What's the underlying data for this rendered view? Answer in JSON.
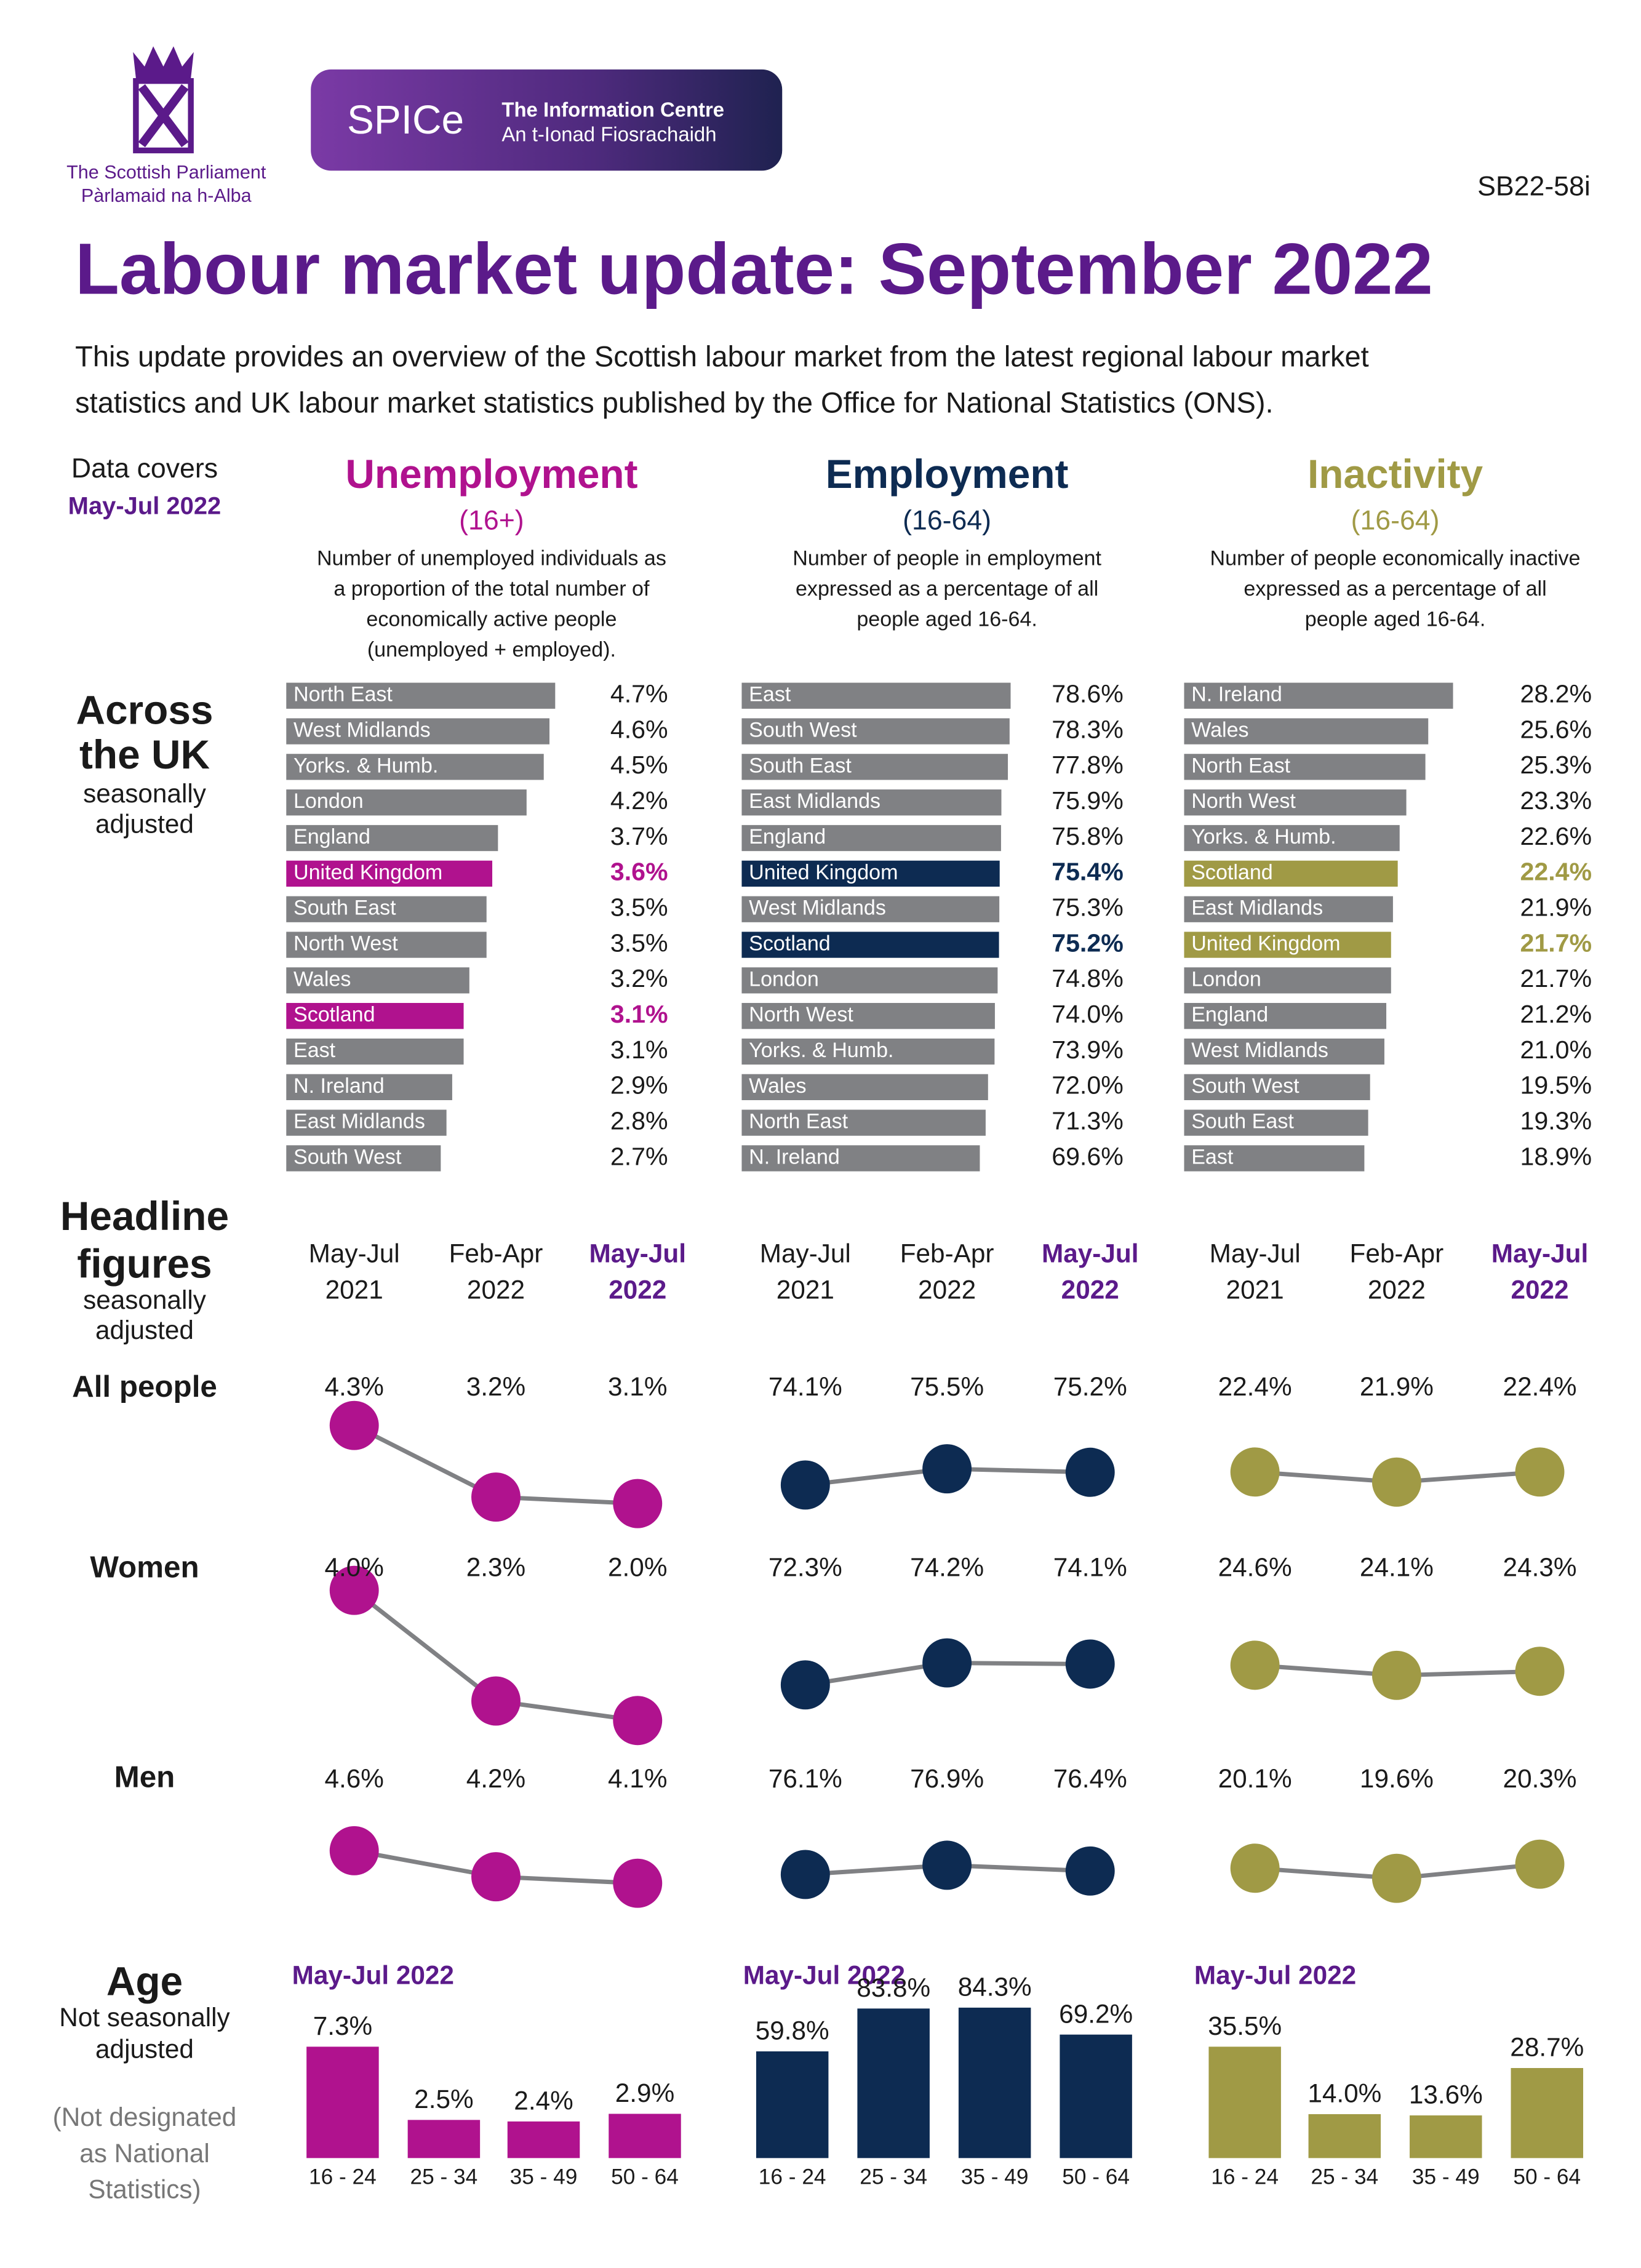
{
  "header": {
    "org": [
      "The Scottish Parliament",
      "Pàrlamaid na h-Alba"
    ],
    "badge": "SPICe",
    "badge_text": [
      "The Information Centre",
      "An t-Ionad Fiosrachaidh"
    ],
    "code": "SB22-58i",
    "title": "Labour market update: September 2022",
    "intro": [
      "This update provides an overview of the Scottish labour market from the latest regional labour market",
      "statistics and UK labour market statistics published by the Office for National Statistics (ONS)."
    ]
  },
  "data_covers": [
    "Data covers",
    "May-Jul 2022"
  ],
  "sections": [
    {
      "title": [
        "Across",
        "the UK"
      ],
      "note": [
        "seasonally",
        "adjusted"
      ]
    },
    {
      "title": [
        "Headline",
        "figures"
      ],
      "note": [
        "seasonally",
        "adjusted"
      ]
    },
    {
      "title": [
        "Age"
      ],
      "note": [
        "Not seasonally",
        "adjusted"
      ],
      "caveat": [
        "(Not designated",
        "as National",
        "Statistics)"
      ]
    }
  ],
  "headline_rows": [
    "All people",
    "Women",
    "Men"
  ],
  "measures": [
    {
      "title": "Unemployment",
      "subtitle": "(16+)",
      "color": "#b0128e",
      "description": [
        "Number of unemployed individuals as",
        "a proportion of the total number of",
        "economically active people",
        "(unemployed + employed)."
      ]
    },
    {
      "title": "Employment",
      "subtitle": "(16-64)",
      "color": "#0d2b52",
      "description": [
        "Number of people in employment",
        "expressed as a percentage of all",
        "people aged 16-64."
      ]
    },
    {
      "title": "Inactivity",
      "subtitle": "(16-64)",
      "color": "#a09a45",
      "description": [
        "Number of people economically inactive",
        "expressed as a percentage of all",
        "people aged 16-64."
      ]
    }
  ],
  "chart_data": [
    {
      "type": "hbar",
      "color": "#808184",
      "categories": [
        "North East",
        "West Midlands",
        "Yorks. & Humb.",
        "London",
        "England",
        "United Kingdom",
        "South East",
        "North West",
        "Wales",
        "Scotland",
        "East",
        "N. Ireland",
        "East Midlands",
        "South West"
      ],
      "values": [
        4.7,
        4.6,
        4.5,
        4.2,
        3.7,
        3.6,
        3.5,
        3.5,
        3.2,
        3.1,
        3.1,
        2.9,
        2.8,
        2.7
      ],
      "value_labels": [
        "4.7%",
        "4.6%",
        "4.5%",
        "4.2%",
        "3.7%",
        "3.6%",
        "3.5%",
        "3.5%",
        "3.2%",
        "3.1%",
        "3.1%",
        "2.9%",
        "2.8%",
        "2.7%"
      ],
      "colors": [
        "#808184",
        "#808184",
        "#808184",
        "#808184",
        "#808184",
        "#b0128e",
        "#808184",
        "#808184",
        "#808184",
        "#b0128e",
        "#808184",
        "#808184",
        "#808184",
        "#808184"
      ]
    },
    {
      "type": "hbar",
      "color": "#808184",
      "categories": [
        "East",
        "South West",
        "South East",
        "East Midlands",
        "England",
        "United Kingdom",
        "West Midlands",
        "Scotland",
        "London",
        "North West",
        "Yorks. & Humb.",
        "Wales",
        "North East",
        "N. Ireland"
      ],
      "values": [
        78.6,
        78.3,
        77.8,
        75.9,
        75.8,
        75.4,
        75.3,
        75.2,
        74.8,
        74.0,
        73.9,
        72.0,
        71.3,
        69.6
      ],
      "value_labels": [
        "78.6%",
        "78.3%",
        "77.8%",
        "75.9%",
        "75.8%",
        "75.4%",
        "75.3%",
        "75.2%",
        "74.8%",
        "74.0%",
        "73.9%",
        "72.0%",
        "71.3%",
        "69.6%"
      ],
      "colors": [
        "#808184",
        "#808184",
        "#808184",
        "#808184",
        "#808184",
        "#0d2b52",
        "#808184",
        "#0d2b52",
        "#808184",
        "#808184",
        "#808184",
        "#808184",
        "#808184",
        "#808184"
      ]
    },
    {
      "type": "hbar",
      "color": "#808184",
      "categories": [
        "N. Ireland",
        "Wales",
        "North East",
        "North West",
        "Yorks. & Humb.",
        "Scotland",
        "East Midlands",
        "United Kingdom",
        "London",
        "England",
        "West Midlands",
        "South West",
        "South East",
        "East"
      ],
      "values": [
        28.2,
        25.6,
        25.3,
        23.3,
        22.6,
        22.4,
        21.9,
        21.7,
        21.7,
        21.2,
        21.0,
        19.5,
        19.3,
        18.9
      ],
      "value_labels": [
        "28.2%",
        "25.6%",
        "25.3%",
        "23.3%",
        "22.6%",
        "22.4%",
        "21.9%",
        "21.7%",
        "21.7%",
        "21.2%",
        "21.0%",
        "19.5%",
        "19.3%",
        "18.9%"
      ],
      "colors": [
        "#808184",
        "#808184",
        "#808184",
        "#808184",
        "#808184",
        "#a09a45",
        "#808184",
        "#a09a45",
        "#808184",
        "#808184",
        "#808184",
        "#808184",
        "#808184",
        "#808184"
      ]
    },
    {
      "type": "line",
      "color": "#b0128e",
      "categories": [
        [
          "May-Jul",
          "2021"
        ],
        [
          "Feb-Apr",
          "2022"
        ],
        [
          "May-Jul",
          "2022"
        ]
      ],
      "series": [
        {
          "values": [
            4.3,
            3.2,
            3.1
          ],
          "value_labels": [
            "4.3%",
            "3.2%",
            "3.1%"
          ]
        },
        {
          "values": [
            4.0,
            2.3,
            2.0
          ],
          "value_labels": [
            "4.0%",
            "2.3%",
            "2.0%"
          ]
        },
        {
          "values": [
            4.6,
            4.2,
            4.1
          ],
          "value_labels": [
            "4.6%",
            "4.2%",
            "4.1%"
          ]
        }
      ]
    },
    {
      "type": "line",
      "color": "#0d2b52",
      "categories": [
        [
          "May-Jul",
          "2021"
        ],
        [
          "Feb-Apr",
          "2022"
        ],
        [
          "May-Jul",
          "2022"
        ]
      ],
      "series": [
        {
          "values": [
            74.1,
            75.5,
            75.2
          ],
          "value_labels": [
            "74.1%",
            "75.5%",
            "75.2%"
          ]
        },
        {
          "values": [
            72.3,
            74.2,
            74.1
          ],
          "value_labels": [
            "72.3%",
            "74.2%",
            "74.1%"
          ]
        },
        {
          "values": [
            76.1,
            76.9,
            76.4
          ],
          "value_labels": [
            "76.1%",
            "76.9%",
            "76.4%"
          ]
        }
      ]
    },
    {
      "type": "line",
      "color": "#a09a45",
      "categories": [
        [
          "May-Jul",
          "2021"
        ],
        [
          "Feb-Apr",
          "2022"
        ],
        [
          "May-Jul",
          "2022"
        ]
      ],
      "series": [
        {
          "values": [
            22.4,
            21.9,
            22.4
          ],
          "value_labels": [
            "22.4%",
            "21.9%",
            "22.4%"
          ]
        },
        {
          "values": [
            24.6,
            24.1,
            24.3
          ],
          "value_labels": [
            "24.6%",
            "24.1%",
            "24.3%"
          ]
        },
        {
          "values": [
            20.1,
            19.6,
            20.3
          ],
          "value_labels": [
            "20.1%",
            "19.6%",
            "20.3%"
          ]
        }
      ]
    },
    {
      "type": "bar",
      "title": "May-Jul 2022",
      "color": "#b0128e",
      "categories": [
        "16 - 24",
        "25 - 34",
        "35 - 49",
        "50 - 64"
      ],
      "values": [
        7.3,
        2.5,
        2.4,
        2.9
      ],
      "value_labels": [
        "7.3%",
        "2.5%",
        "2.4%",
        "2.9%"
      ]
    },
    {
      "type": "bar",
      "title": "May-Jul 2022",
      "color": "#0d2b52",
      "categories": [
        "16 - 24",
        "25 - 34",
        "35 - 49",
        "50 - 64"
      ],
      "values": [
        59.8,
        83.8,
        84.3,
        69.2
      ],
      "value_labels": [
        "59.8%",
        "83.8%",
        "84.3%",
        "69.2%"
      ]
    },
    {
      "type": "bar",
      "title": "May-Jul 2022",
      "color": "#a09a45",
      "categories": [
        "16 - 24",
        "25 - 34",
        "35 - 49",
        "50 - 64"
      ],
      "values": [
        35.5,
        14.0,
        13.6,
        28.7
      ],
      "value_labels": [
        "35.5%",
        "14.0%",
        "13.6%",
        "28.7%"
      ]
    }
  ]
}
